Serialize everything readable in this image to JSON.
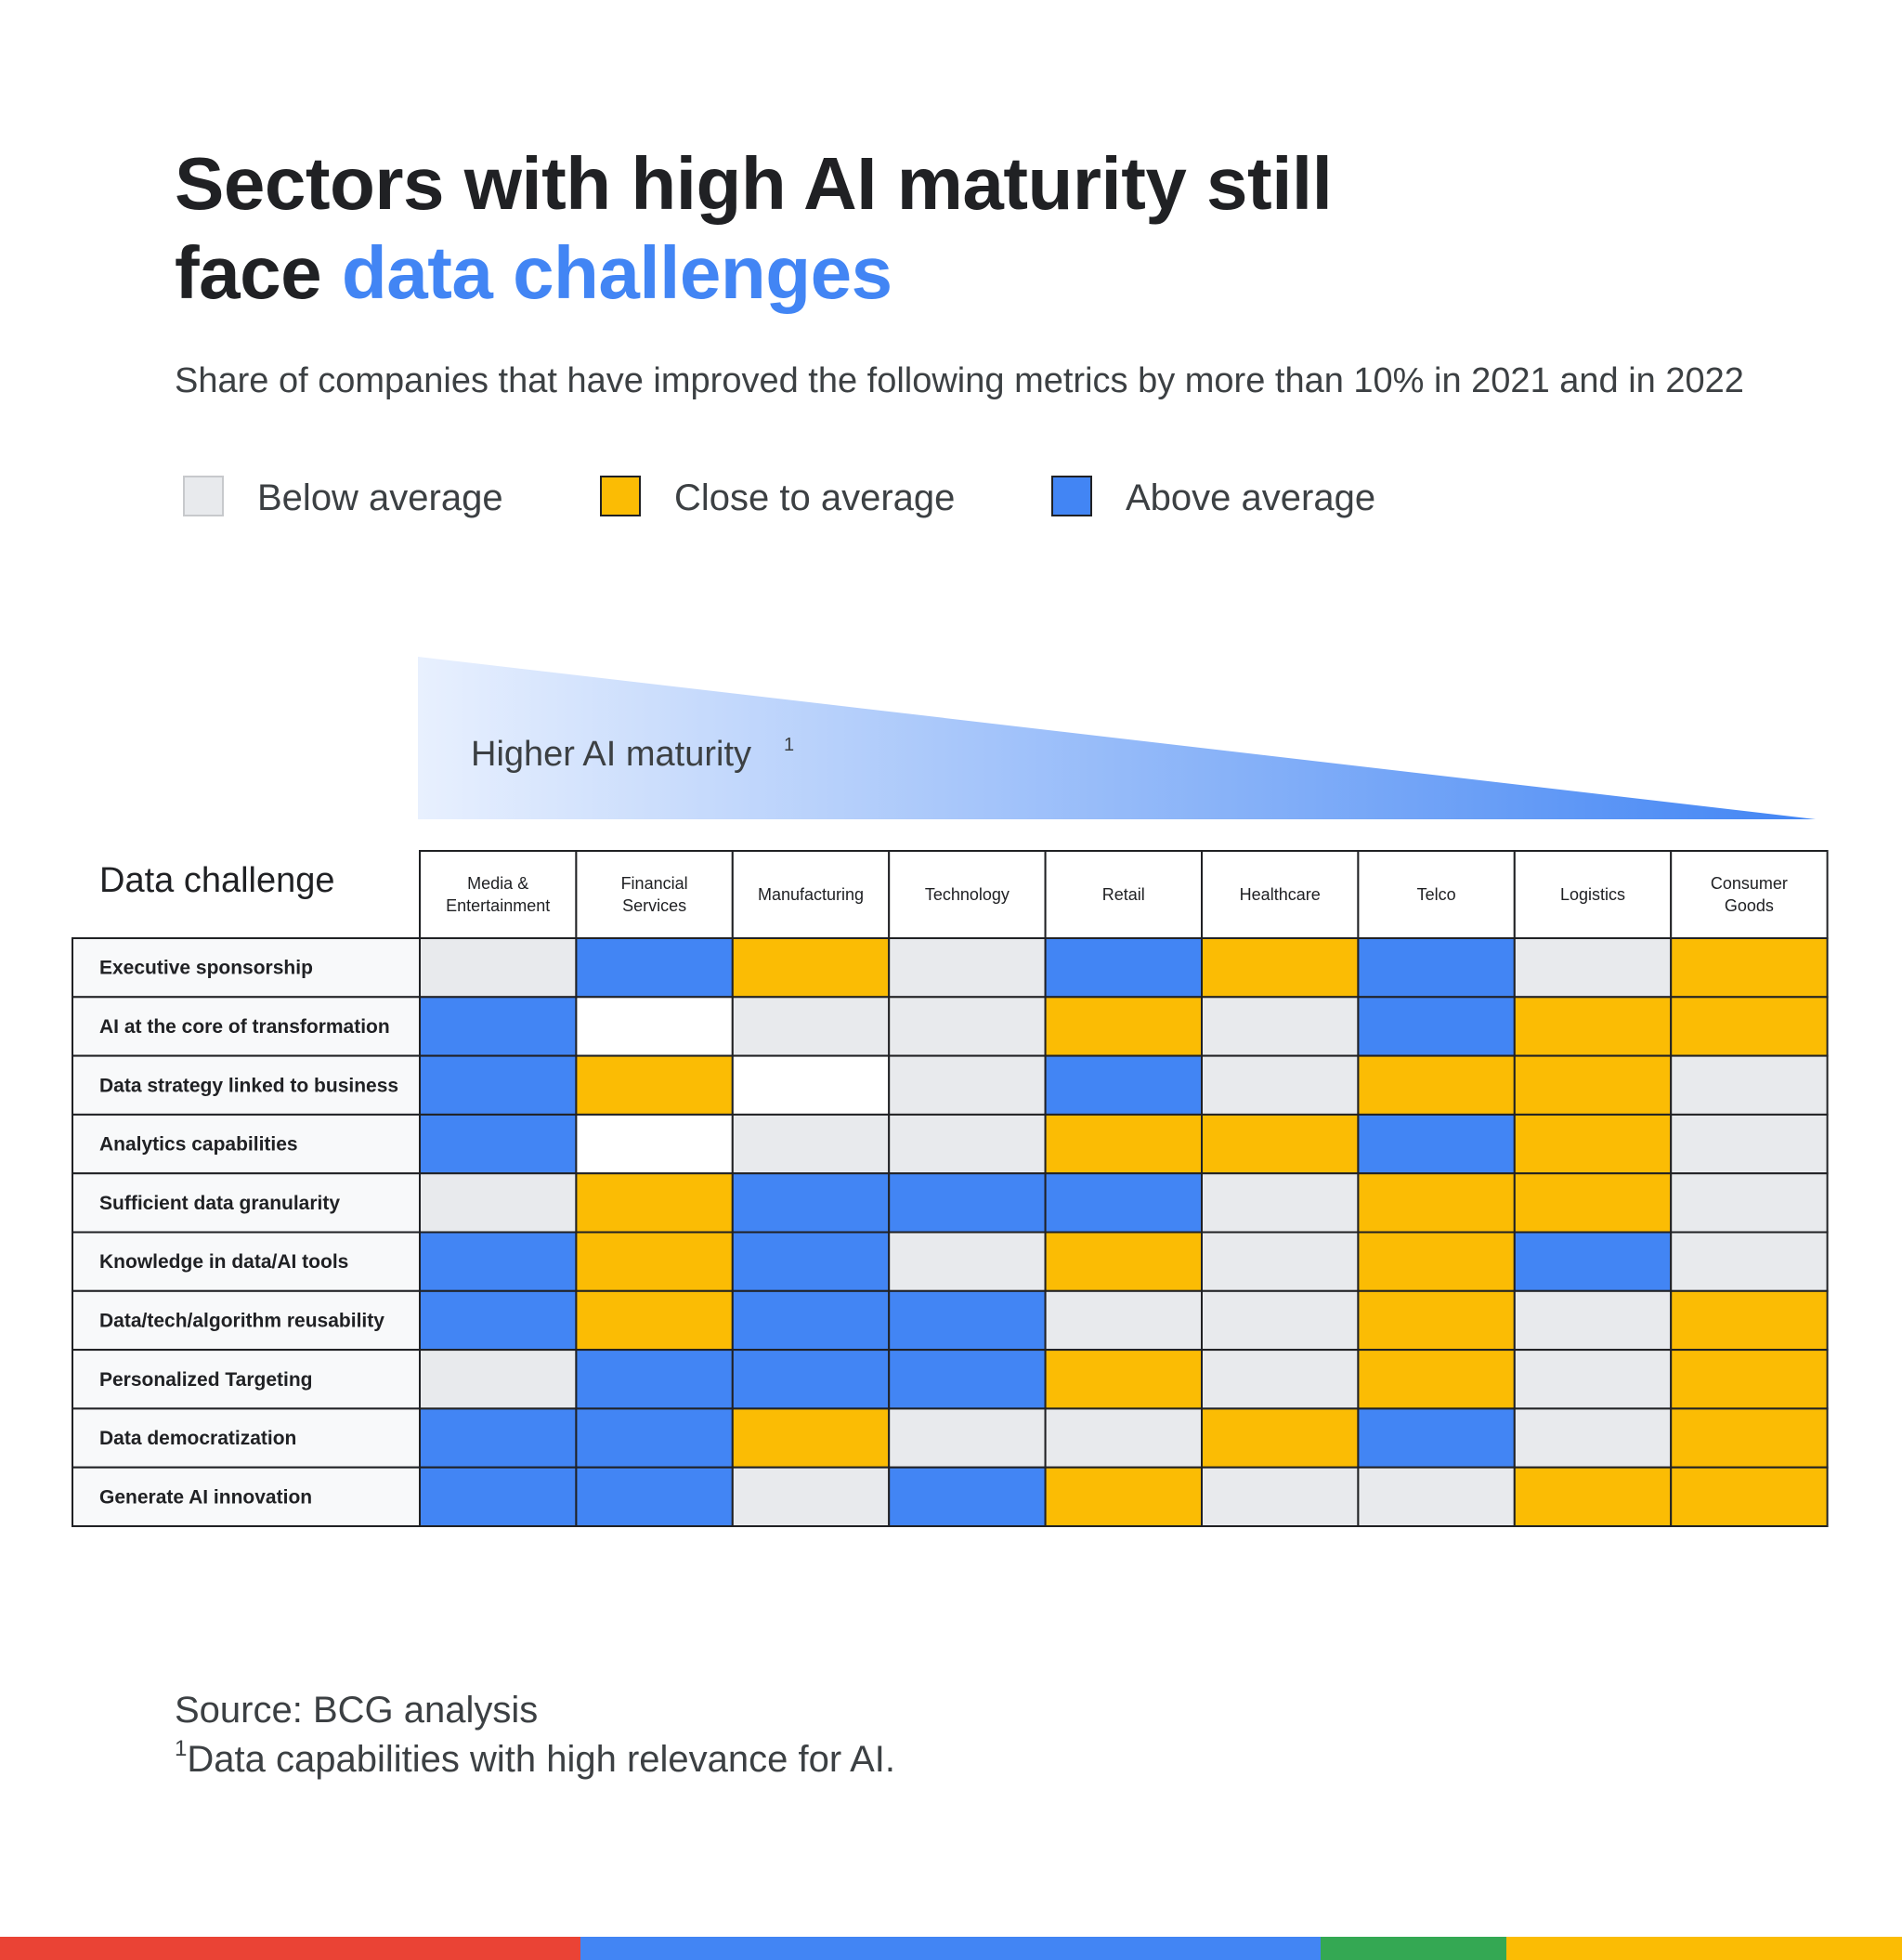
{
  "title": {
    "line1": "Sectors with high AI maturity still",
    "line2_prefix": "face ",
    "line2_accent": "data challenges"
  },
  "subtitle": "Share of companies that have improved the following metrics by more than 10% in 2021 and in 2022",
  "legend": [
    {
      "key": "below",
      "label": "Below average",
      "color": "#e8eaed"
    },
    {
      "key": "close",
      "label": "Close to average",
      "color": "#fbbc04"
    },
    {
      "key": "above",
      "label": "Above average",
      "color": "#4285f4"
    }
  ],
  "colors": {
    "below": "#e8eaed",
    "close": "#fbbc04",
    "above": "#4285f4",
    "none": "#ffffff",
    "gradient_start": "#e8f0fe",
    "gradient_end": "#4285f4"
  },
  "chart_data": {
    "type": "heatmap",
    "title": "Sectors with high AI maturity still face data challenges",
    "maturity_label": "Higher AI maturity",
    "maturity_superscript": "1",
    "row_header": "Data challenge",
    "columns": [
      "Media & Entertainment",
      "Financial Services",
      "Manufacturing",
      "Technology",
      "Retail",
      "Healthcare",
      "Telco",
      "Logistics",
      "Consumer Goods"
    ],
    "columns_display": [
      [
        "Media &",
        "Entertainment"
      ],
      [
        "Financial",
        "Services"
      ],
      [
        "Manufacturing"
      ],
      [
        "Technology"
      ],
      [
        "Retail"
      ],
      [
        "Healthcare"
      ],
      [
        "Telco"
      ],
      [
        "Logistics"
      ],
      [
        "Consumer",
        "Goods"
      ]
    ],
    "rows": [
      "Executive sponsorship",
      "AI at the core of transformation",
      "Data strategy linked to business",
      "Analytics capabilities",
      "Sufficient data granularity",
      "Knowledge in data/AI tools",
      "Data/tech/algorithm reusability",
      "Personalized Targeting",
      "Data democratization",
      "Generate AI innovation"
    ],
    "categories": [
      "below",
      "close",
      "above",
      "none"
    ],
    "values": [
      [
        "below",
        "above",
        "close",
        "below",
        "above",
        "close",
        "above",
        "below",
        "close"
      ],
      [
        "above",
        "none",
        "below",
        "below",
        "close",
        "below",
        "above",
        "close",
        "close"
      ],
      [
        "above",
        "close",
        "none",
        "below",
        "above",
        "below",
        "close",
        "close",
        "below"
      ],
      [
        "above",
        "none",
        "below",
        "below",
        "close",
        "close",
        "above",
        "close",
        "below"
      ],
      [
        "below",
        "close",
        "above",
        "above",
        "above",
        "below",
        "close",
        "close",
        "below"
      ],
      [
        "above",
        "close",
        "above",
        "below",
        "close",
        "below",
        "close",
        "above",
        "below"
      ],
      [
        "above",
        "close",
        "above",
        "above",
        "below",
        "below",
        "close",
        "below",
        "close"
      ],
      [
        "below",
        "above",
        "above",
        "above",
        "close",
        "below",
        "close",
        "below",
        "close"
      ],
      [
        "above",
        "above",
        "close",
        "below",
        "below",
        "close",
        "above",
        "below",
        "close"
      ],
      [
        "above",
        "above",
        "below",
        "above",
        "close",
        "below",
        "below",
        "close",
        "close"
      ]
    ]
  },
  "footnotes": {
    "source": "Source: BCG analysis",
    "note_marker": "1",
    "note": "Data capabilities with high relevance for AI."
  },
  "brand_bar": [
    "#ea4335",
    "#4285f4",
    "#34a853",
    "#fbbc04"
  ]
}
